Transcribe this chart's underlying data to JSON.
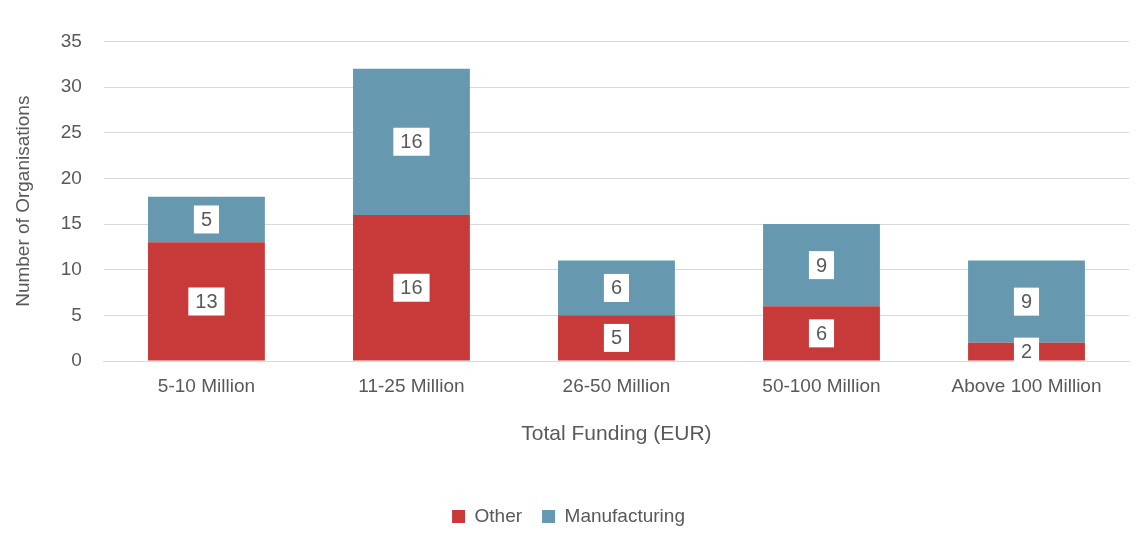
{
  "chart_data": {
    "type": "bar",
    "stacked": true,
    "xlabel": "Total Funding (EUR)",
    "ylabel": "Number of Organisations",
    "categories": [
      "5-10 Million",
      "11-25 Million",
      "26-50 Million",
      "50-100 Million",
      "Above 100 Million"
    ],
    "series": [
      {
        "name": "Other",
        "color": "#c83a3a",
        "values": [
          13,
          16,
          5,
          6,
          2
        ]
      },
      {
        "name": "Manufacturing",
        "color": "#6699b0",
        "values": [
          5,
          16,
          6,
          9,
          9
        ]
      }
    ],
    "ylim": [
      0,
      35
    ],
    "yticks": [
      0,
      5,
      10,
      15,
      20,
      25,
      30,
      35
    ],
    "grid": "y",
    "legend": "bottom",
    "data_labels": true
  }
}
